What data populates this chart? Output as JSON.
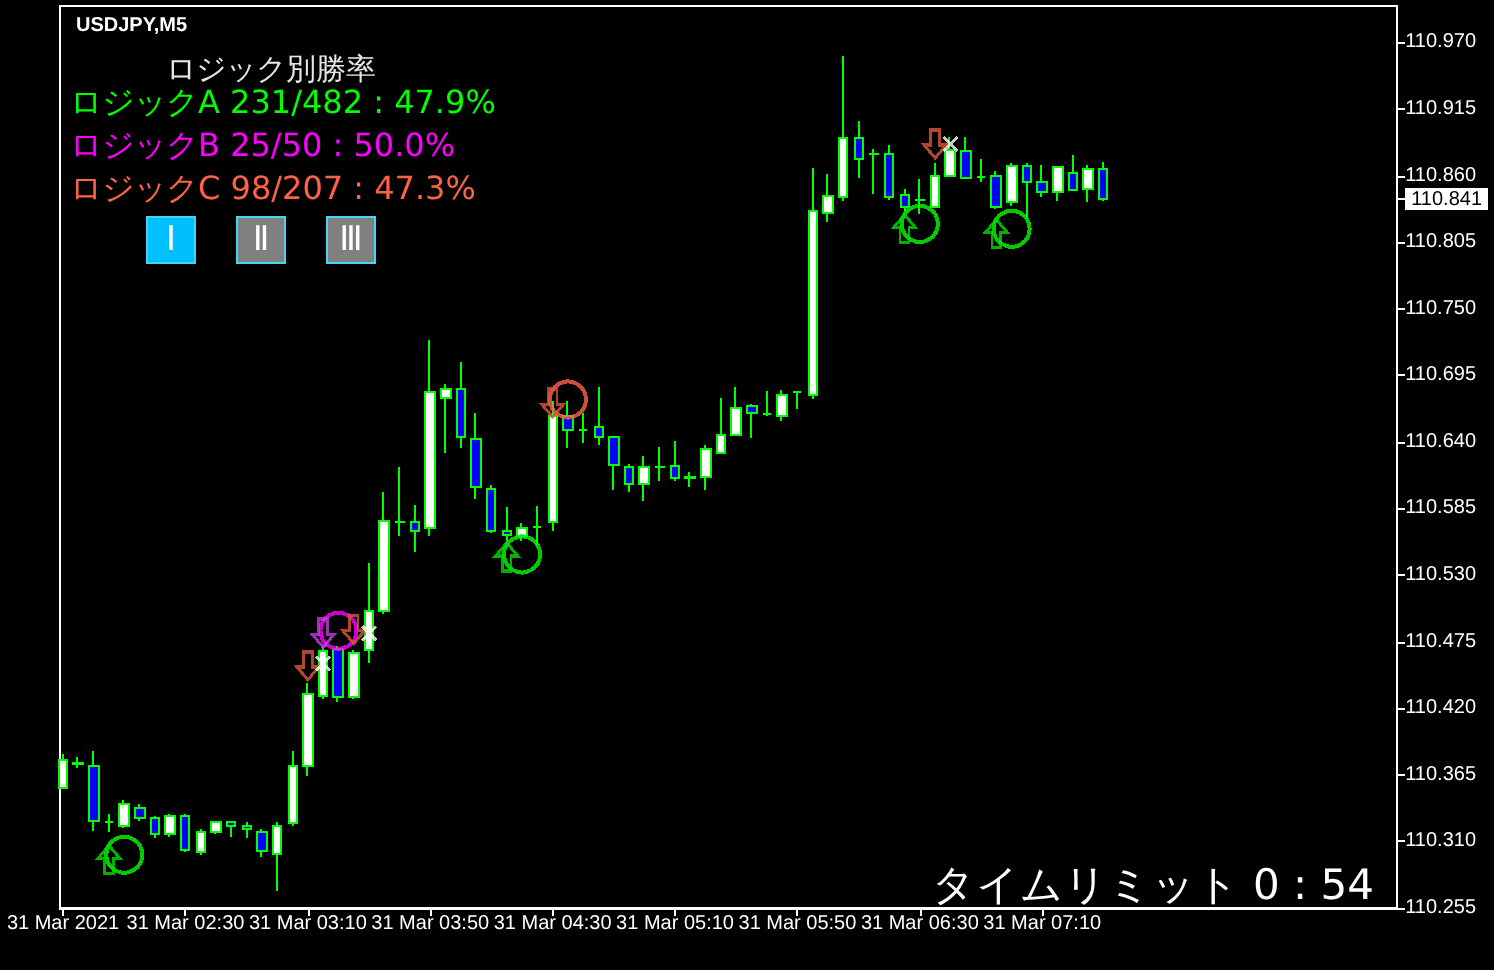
{
  "chart_data": {
    "type": "candlestick",
    "title": "USDJPY,M5",
    "subtitle": "ロジック別勝率",
    "annotations": [
      "タイムリミット 0 : 54",
      "Ⅰ",
      "Ⅱ",
      "Ⅲ"
    ],
    "x": [
      "2021-03-31T01:50",
      "2021-03-31T01:55",
      "2021-03-31T02:00",
      "2021-03-31T02:05",
      "2021-03-31T02:10",
      "2021-03-31T02:15",
      "2021-03-31T02:20",
      "2021-03-31T02:25",
      "2021-03-31T02:30",
      "2021-03-31T02:35",
      "2021-03-31T02:40",
      "2021-03-31T02:45",
      "2021-03-31T02:50",
      "2021-03-31T02:55",
      "2021-03-31T03:00",
      "2021-03-31T03:05",
      "2021-03-31T03:10",
      "2021-03-31T03:15",
      "2021-03-31T03:20",
      "2021-03-31T03:25",
      "2021-03-31T03:30",
      "2021-03-31T03:35",
      "2021-03-31T03:40",
      "2021-03-31T03:45",
      "2021-03-31T03:50",
      "2021-03-31T03:55",
      "2021-03-31T04:00",
      "2021-03-31T04:05",
      "2021-03-31T04:10",
      "2021-03-31T04:15",
      "2021-03-31T04:20",
      "2021-03-31T04:25",
      "2021-03-31T04:30",
      "2021-03-31T04:35",
      "2021-03-31T04:40",
      "2021-03-31T04:45",
      "2021-03-31T04:50",
      "2021-03-31T04:55",
      "2021-03-31T05:00",
      "2021-03-31T05:05",
      "2021-03-31T05:10",
      "2021-03-31T05:15",
      "2021-03-31T05:20",
      "2021-03-31T05:25",
      "2021-03-31T05:30",
      "2021-03-31T05:35",
      "2021-03-31T05:40",
      "2021-03-31T05:45",
      "2021-03-31T05:50",
      "2021-03-31T05:55",
      "2021-03-31T06:00",
      "2021-03-31T06:05",
      "2021-03-31T06:10",
      "2021-03-31T06:15",
      "2021-03-31T06:20",
      "2021-03-31T06:25",
      "2021-03-31T06:30",
      "2021-03-31T06:35",
      "2021-03-31T06:40",
      "2021-03-31T06:45",
      "2021-03-31T06:50",
      "2021-03-31T06:55",
      "2021-03-31T07:00",
      "2021-03-31T07:05",
      "2021-03-31T07:10",
      "2021-03-31T07:15",
      "2021-03-31T07:20",
      "2021-03-31T07:25",
      "2021-03-31T07:30"
    ],
    "ohlc": [
      [
        110.354,
        110.382,
        110.353,
        110.377
      ],
      [
        110.374,
        110.38,
        110.371,
        110.375
      ],
      [
        110.372,
        110.385,
        110.319,
        110.327
      ],
      [
        110.326,
        110.333,
        110.318,
        110.326
      ],
      [
        110.323,
        110.344,
        110.321,
        110.341
      ],
      [
        110.338,
        110.341,
        110.327,
        110.329
      ],
      [
        110.329,
        110.331,
        110.313,
        110.316
      ],
      [
        110.316,
        110.333,
        110.314,
        110.331
      ],
      [
        110.331,
        110.333,
        110.301,
        110.303
      ],
      [
        110.301,
        110.32,
        110.299,
        110.318
      ],
      [
        110.318,
        110.327,
        110.316,
        110.326
      ],
      [
        110.326,
        110.327,
        110.314,
        110.323
      ],
      [
        110.323,
        110.326,
        110.313,
        110.32
      ],
      [
        110.318,
        110.32,
        110.297,
        110.302
      ],
      [
        110.3,
        110.326,
        110.269,
        110.323
      ],
      [
        110.325,
        110.385,
        110.323,
        110.372
      ],
      [
        110.372,
        110.441,
        110.364,
        110.432
      ],
      [
        110.43,
        110.471,
        110.428,
        110.467
      ],
      [
        110.469,
        110.471,
        110.425,
        110.429
      ],
      [
        110.429,
        110.468,
        110.428,
        110.466
      ],
      [
        110.468,
        110.54,
        110.457,
        110.5
      ],
      [
        110.5,
        110.599,
        110.498,
        110.575
      ],
      [
        110.574,
        110.619,
        110.562,
        110.574
      ],
      [
        110.574,
        110.588,
        110.549,
        110.566
      ],
      [
        110.569,
        110.724,
        110.562,
        110.681
      ],
      [
        110.676,
        110.688,
        110.631,
        110.684
      ],
      [
        110.684,
        110.706,
        110.635,
        110.644
      ],
      [
        110.642,
        110.664,
        110.593,
        110.603
      ],
      [
        110.601,
        110.604,
        110.565,
        110.566
      ],
      [
        110.566,
        110.586,
        110.558,
        110.563
      ],
      [
        110.562,
        110.573,
        110.558,
        110.569
      ],
      [
        110.57,
        110.587,
        110.555,
        110.57
      ],
      [
        110.574,
        110.674,
        110.566,
        110.661
      ],
      [
        110.661,
        110.674,
        110.635,
        110.65
      ],
      [
        110.65,
        110.664,
        110.639,
        110.65
      ],
      [
        110.652,
        110.685,
        110.637,
        110.644
      ],
      [
        110.644,
        110.645,
        110.6,
        110.621
      ],
      [
        110.619,
        110.622,
        110.599,
        110.605
      ],
      [
        110.605,
        110.628,
        110.591,
        110.619
      ],
      [
        110.619,
        110.636,
        110.608,
        110.619
      ],
      [
        110.62,
        110.641,
        110.608,
        110.61
      ],
      [
        110.61,
        110.615,
        110.603,
        110.611
      ],
      [
        110.611,
        110.637,
        110.6,
        110.634
      ],
      [
        110.631,
        110.676,
        110.63,
        110.646
      ],
      [
        110.646,
        110.685,
        110.645,
        110.668
      ],
      [
        110.67,
        110.671,
        110.643,
        110.664
      ],
      [
        110.663,
        110.682,
        110.661,
        110.663
      ],
      [
        110.661,
        110.683,
        110.657,
        110.679
      ],
      [
        110.681,
        110.682,
        110.667,
        110.681
      ],
      [
        110.679,
        110.866,
        110.675,
        110.831
      ],
      [
        110.829,
        110.861,
        110.822,
        110.843
      ],
      [
        110.842,
        110.959,
        110.839,
        110.891
      ],
      [
        110.891,
        110.905,
        110.858,
        110.874
      ],
      [
        110.878,
        110.882,
        110.845,
        110.878
      ],
      [
        110.878,
        110.885,
        110.84,
        110.842
      ],
      [
        110.844,
        110.849,
        110.831,
        110.834
      ],
      [
        110.84,
        110.857,
        110.828,
        110.84
      ],
      [
        110.834,
        110.87,
        110.833,
        110.86
      ],
      [
        110.86,
        110.892,
        110.859,
        110.881
      ],
      [
        110.88,
        110.892,
        110.857,
        110.858
      ],
      [
        110.859,
        110.874,
        110.855,
        110.859
      ],
      [
        110.86,
        110.864,
        110.832,
        110.834
      ],
      [
        110.838,
        110.87,
        110.835,
        110.868
      ],
      [
        110.868,
        110.87,
        110.824,
        110.855
      ],
      [
        110.855,
        110.869,
        110.842,
        110.846
      ],
      [
        110.846,
        110.868,
        110.839,
        110.867
      ],
      [
        110.862,
        110.877,
        110.847,
        110.848
      ],
      [
        110.849,
        110.869,
        110.838,
        110.865
      ],
      [
        110.865,
        110.871,
        110.839,
        110.841
      ]
    ],
    "color": "#00ff00",
    "colors": [
      "#ffffff",
      "#ffffff",
      "#0000ff",
      "#00ff00",
      "#ffffff",
      "#0000ff",
      "#0000ff",
      "#ffffff",
      "#0000ff",
      "#ffffff",
      "#ffffff",
      "#0000ff",
      "#0000ff",
      "#0000ff",
      "#ffffff",
      "#ffffff",
      "#ffffff",
      "#ffffff",
      "#0000ff",
      "#ffffff",
      "#ffffff",
      "#ffffff",
      "#00ff00",
      "#0000ff",
      "#ffffff",
      "#ffffff",
      "#0000ff",
      "#0000ff",
      "#0000ff",
      "#0000ff",
      "#ffffff",
      "#00ff00",
      "#ffffff",
      "#0000ff",
      "#00ff00",
      "#0000ff",
      "#0000ff",
      "#0000ff",
      "#ffffff",
      "#00ff00",
      "#0000ff",
      "#00ff00",
      "#ffffff",
      "#ffffff",
      "#ffffff",
      "#0000ff",
      "#00ff00",
      "#ffffff",
      "#00ff00",
      "#ffffff",
      "#ffffff",
      "#ffffff",
      "#0000ff",
      "#00ff00",
      "#0000ff",
      "#0000ff",
      "#00ff00",
      "#ffffff",
      "#ffffff",
      "#0000ff",
      "#00ff00",
      "#0000ff",
      "#ffffff",
      "#0000ff",
      "#0000ff",
      "#ffffff",
      "#0000ff",
      "#ffffff",
      "#0000ff"
    ],
    "series": [
      {
        "type": "scatter",
        "name": "ロジックA 231/482 : 47.9%",
        "color": "#00ff00",
        "marker": "circle",
        "x": [
          "2021-03-31T02:10",
          "2021-03-31T04:20",
          "2021-03-31T06:30",
          "2021-03-31T07:00"
        ],
        "values": [
          110.299,
          110.547,
          110.82,
          110.816
        ]
      },
      {
        "type": "scatter",
        "name": "ロジックB 25/50 : 50.0%",
        "color": "#ff00ff",
        "marker": "circle",
        "x": [
          "2021-03-31T03:20"
        ],
        "values": [
          110.484
        ]
      },
      {
        "type": "scatter",
        "name": "ロジックC 98/207 : 47.3%",
        "color": "#ff6347",
        "marker": "circle",
        "x": [
          "2021-03-31T04:35"
        ],
        "values": [
          110.675
        ]
      },
      {
        "type": "scatter",
        "color": "#00dd00",
        "x": [
          "2021-03-31T02:05",
          "2021-03-31T04:15",
          "2021-03-31T06:25",
          "2021-03-31T06:55"
        ],
        "values": [
          110.295,
          110.545,
          110.816,
          110.812
        ]
      },
      {
        "type": "scatter",
        "color": "#c040e0",
        "x": [
          "2021-03-31T03:15"
        ],
        "values": [
          110.482
        ]
      },
      {
        "type": "scatter",
        "color": "#e0553a",
        "x": [
          "2021-03-31T03:10",
          "2021-03-31T03:25",
          "2021-03-31T04:30",
          "2021-03-31T06:35"
        ],
        "values": [
          110.455,
          110.485,
          110.672,
          110.886
        ]
      },
      {
        "type": "scatter",
        "color": "#ffffff",
        "marker": "cross",
        "x": [
          "2021-03-31T03:15",
          "2021-03-31T03:30",
          "2021-03-31T06:40"
        ],
        "values": [
          110.457,
          110.482,
          110.886
        ]
      }
    ],
    "xlim": [
      "2021-03-31T01:49",
      "2021-03-31T09:06"
    ],
    "xticks": [
      {
        "value": "2021-03-31T01:50",
        "label": "31 Mar 2021"
      },
      {
        "value": "2021-03-31T02:30",
        "label": "31 Mar 02:30"
      },
      {
        "value": "2021-03-31T03:10",
        "label": "31 Mar 03:10"
      },
      {
        "value": "2021-03-31T03:50",
        "label": "31 Mar 03:50"
      },
      {
        "value": "2021-03-31T04:30",
        "label": "31 Mar 04:30"
      },
      {
        "value": "2021-03-31T05:10",
        "label": "31 Mar 05:10"
      },
      {
        "value": "2021-03-31T05:50",
        "label": "31 Mar 05:50"
      },
      {
        "value": "2021-03-31T06:30",
        "label": "31 Mar 06:30"
      },
      {
        "value": "2021-03-31T07:10",
        "label": "31 Mar 07:10"
      }
    ],
    "ylim": [
      110.255,
      111.0
    ],
    "yticks": [
      110.255,
      {
        "value": 110.31,
        "label": "110.310"
      },
      110.365,
      {
        "value": 110.42,
        "label": "110.420"
      },
      110.475,
      {
        "value": 110.53,
        "label": "110.530"
      },
      110.585,
      {
        "value": 110.64,
        "label": "110.640"
      },
      110.695,
      {
        "value": 110.75,
        "label": "110.750"
      },
      110.805,
      110.841,
      {
        "value": 110.86,
        "label": "110.860"
      },
      110.915,
      {
        "value": 110.97,
        "label": "110.970"
      }
    ]
  }
}
